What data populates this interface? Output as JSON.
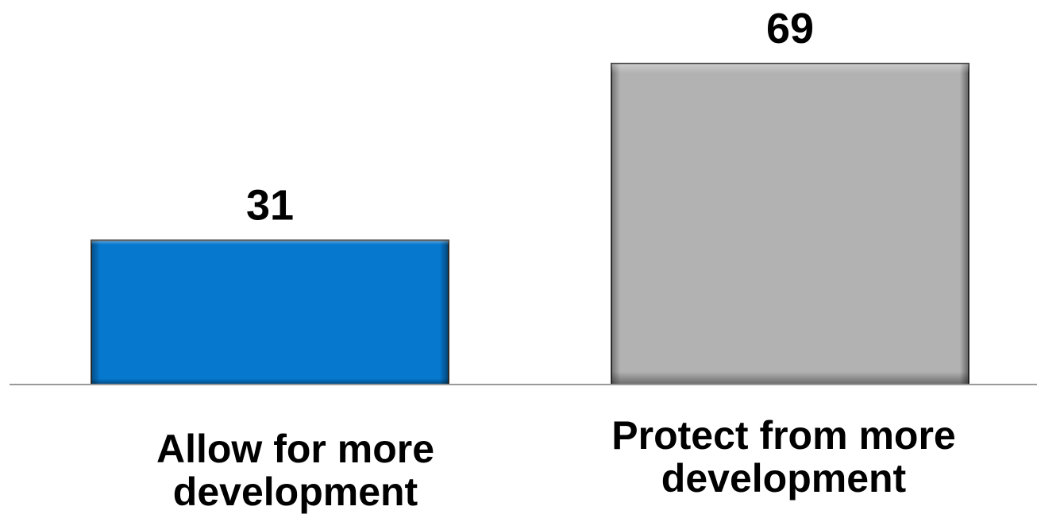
{
  "chart_data": {
    "type": "bar",
    "categories": [
      [
        "Allow for more",
        "development"
      ],
      [
        "Protect from more",
        "development"
      ]
    ],
    "values": [
      31,
      69
    ],
    "data_labels": [
      "31",
      "69"
    ],
    "colors": [
      "#0678CE",
      "#B2B2B2"
    ],
    "title": "",
    "xlabel": "",
    "ylabel": "",
    "ylim": [
      0,
      69
    ],
    "grid": false,
    "legend": "none"
  }
}
